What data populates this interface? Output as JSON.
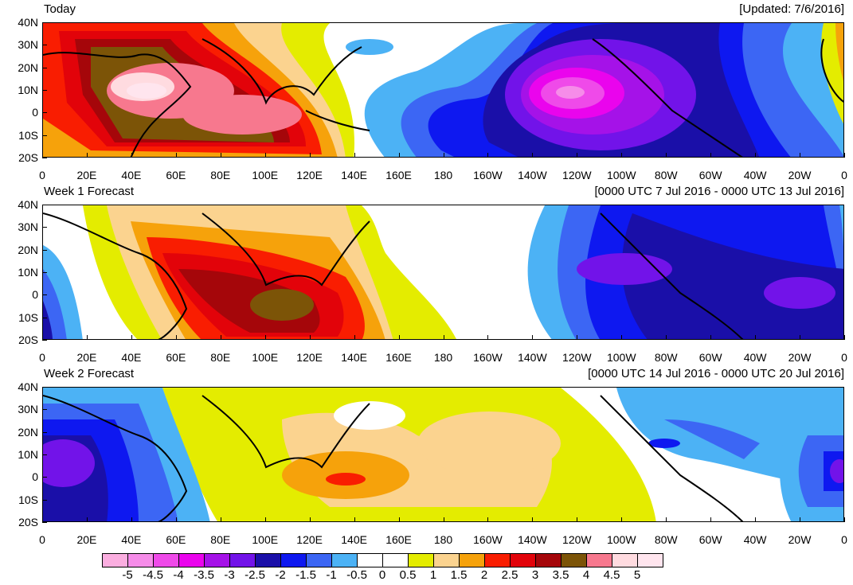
{
  "panels": [
    {
      "title": "Today",
      "range": "[Updated: 7/6/2016]"
    },
    {
      "title": "Week 1 Forecast",
      "range": "[0000 UTC 7 Jul 2016 - 0000 UTC 13 Jul 2016]"
    },
    {
      "title": "Week 2 Forecast",
      "range": "[0000 UTC 14 Jul 2016 - 0000 UTC 20 Jul 2016]"
    }
  ],
  "lat_labels": [
    "40N",
    "30N",
    "20N",
    "10N",
    "0",
    "10S",
    "20S"
  ],
  "lon_labels": [
    "0",
    "20E",
    "40E",
    "60E",
    "80E",
    "100E",
    "120E",
    "140E",
    "160E",
    "180",
    "160W",
    "140W",
    "120W",
    "100W",
    "80W",
    "60W",
    "40W",
    "20W",
    "0"
  ],
  "colorbar": {
    "labels": [
      "-5",
      "-4.5",
      "-4",
      "-3.5",
      "-3",
      "-2.5",
      "-2",
      "-1.5",
      "-1",
      "-0.5",
      "0",
      "0.5",
      "1",
      "1.5",
      "2",
      "2.5",
      "3",
      "3.5",
      "4",
      "4.5",
      "5"
    ],
    "colors": [
      "#fbaee0",
      "#f68ce9",
      "#ef4ae9",
      "#ea04ed",
      "#a512e8",
      "#7213e9",
      "#1a0fa8",
      "#0e18f0",
      "#3c66f4",
      "#4cb2f5",
      "#ffffff",
      "#ffffff",
      "#e4ec00",
      "#fbd38f",
      "#f6a20b",
      "#f91d01",
      "#e2030a",
      "#a5060a",
      "#7c5407",
      "#f7788e",
      "#ffdbe0",
      "#ffe5ee"
    ]
  }
}
